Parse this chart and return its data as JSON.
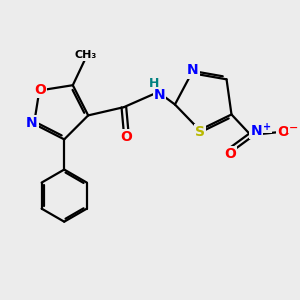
{
  "bg_color": "#ececec",
  "bond_color": "#000000",
  "atom_colors": {
    "N": "#0000ff",
    "O": "#ff0000",
    "S": "#b8b800",
    "H": "#008080",
    "C": "#000000"
  },
  "font_size": 9,
  "dpi": 100,
  "figsize": [
    3.0,
    3.0
  ]
}
